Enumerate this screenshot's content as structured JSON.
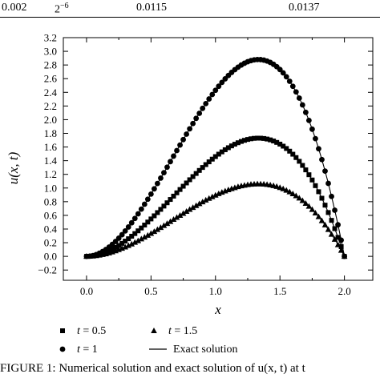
{
  "table_row": {
    "cells": [
      "0.002",
      "2",
      "0.0115",
      "0.0137"
    ],
    "exponent": "−6"
  },
  "caption": "FIGURE 1: Numerical solution and exact solution of u(x, t) at t",
  "chart_data": {
    "type": "scatter",
    "xlabel": "x",
    "ylabel": "u(x, t)",
    "xlim": [
      -0.18,
      2.22
    ],
    "ylim": [
      -0.35,
      3.2
    ],
    "xticks": [
      0.0,
      0.5,
      1.0,
      1.5,
      2.0
    ],
    "xtick_labels": [
      "0.0",
      "0.5",
      "1.0",
      "1.5",
      "2.0"
    ],
    "yticks": [
      -0.2,
      0.0,
      0.2,
      0.4,
      0.6,
      0.8,
      1.0,
      1.2,
      1.4,
      1.6,
      1.8,
      2.0,
      2.2,
      2.4,
      2.6,
      2.8,
      3.0,
      3.2
    ],
    "ytick_labels": [
      "−0.2",
      "0.0",
      "0.2",
      "0.4",
      "0.6",
      "0.8",
      "1.0",
      "1.2",
      "1.4",
      "1.6",
      "1.8",
      "2.0",
      "2.2",
      "2.4",
      "2.6",
      "2.8",
      "3.0",
      "3.2"
    ],
    "grid": false,
    "legend_position": "below",
    "series": [
      {
        "name": "t = 0.5",
        "marker": "square",
        "peak_x": 1.333,
        "peak_y": 1.73
      },
      {
        "name": "t = 1",
        "marker": "circle",
        "peak_x": 1.333,
        "peak_y": 2.88
      },
      {
        "name": "t = 1.5",
        "marker": "triangle",
        "peak_x": 1.333,
        "peak_y": 1.06
      },
      {
        "name": "Exact solution",
        "marker": "line",
        "peak_x": 1.333,
        "peak_y": 2.88
      }
    ],
    "x_domain": [
      0,
      2
    ],
    "n_points": 80
  },
  "legend": {
    "items": [
      {
        "t_label": "t",
        "value": " = 0.5",
        "marker": "square"
      },
      {
        "t_label": "t",
        "value": " = 1",
        "marker": "circle"
      },
      {
        "t_label": "t",
        "value": " = 1.5",
        "marker": "triangle"
      },
      {
        "t_label": "",
        "value": "Exact solution",
        "marker": "line"
      }
    ]
  }
}
